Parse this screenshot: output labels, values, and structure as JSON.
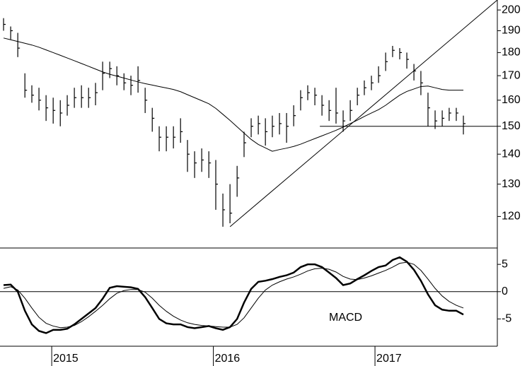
{
  "chart_data": [
    {
      "type": "ohlc",
      "log_scale": true,
      "color": "#000000",
      "x": [
        2014.702,
        2014.746,
        2014.79,
        2014.834,
        2014.877,
        2014.921,
        2014.965,
        2015.009,
        2015.053,
        2015.096,
        2015.14,
        2015.184,
        2015.228,
        2015.271,
        2015.315,
        2015.359,
        2015.403,
        2015.447,
        2015.49,
        2015.534,
        2015.578,
        2015.622,
        2015.665,
        2015.709,
        2015.753,
        2015.797,
        2015.84,
        2015.884,
        2015.928,
        2015.972,
        2016.015,
        2016.059,
        2016.103,
        2016.147,
        2016.19,
        2016.234,
        2016.278,
        2016.322,
        2016.365,
        2016.409,
        2016.453,
        2016.497,
        2016.54,
        2016.584,
        2016.628,
        2016.672,
        2016.716,
        2016.759,
        2016.803,
        2016.847,
        2016.891,
        2016.934,
        2016.978,
        2017.022,
        2017.066,
        2017.109,
        2017.153,
        2017.197,
        2017.241,
        2017.284,
        2017.328,
        2017.372,
        2017.416,
        2017.459,
        2017.503,
        2017.547
      ],
      "high": [
        196,
        192,
        189,
        171,
        166,
        165,
        162,
        161,
        160,
        162,
        165,
        166,
        165,
        167,
        176,
        176,
        174,
        171,
        170,
        174,
        165,
        157,
        150,
        150,
        150,
        153,
        145,
        141,
        142,
        141,
        138,
        127,
        130,
        136,
        148,
        153,
        154,
        153,
        154,
        155,
        155,
        158,
        164,
        166,
        165,
        162,
        160,
        165,
        156,
        160,
        165,
        168,
        170,
        174,
        180,
        183,
        182,
        180,
        175,
        172,
        163,
        156,
        156,
        157,
        157,
        154
      ],
      "low": [
        190,
        186,
        178,
        161,
        159,
        156,
        152,
        151,
        150,
        154,
        157,
        157,
        157,
        158,
        164,
        169,
        166,
        164,
        162,
        163,
        155,
        148,
        141,
        141,
        142,
        144,
        134,
        132,
        134,
        132,
        122,
        117,
        118,
        126,
        139,
        146,
        147,
        143,
        146,
        147,
        144,
        150,
        156,
        160,
        158,
        154,
        152,
        151,
        148,
        152,
        158,
        162,
        164,
        167,
        172,
        178,
        177,
        173,
        168,
        162,
        150,
        149,
        150,
        152,
        152,
        147
      ],
      "close": [
        193,
        190,
        182,
        164,
        162,
        160,
        157,
        156,
        155,
        158,
        161,
        161,
        161,
        163,
        171,
        173,
        170,
        167,
        166,
        168,
        160,
        153,
        146,
        146,
        146,
        148,
        140,
        137,
        138,
        137,
        130,
        122,
        121,
        132,
        144,
        150,
        151,
        148,
        150,
        151,
        150,
        154,
        161,
        163,
        162,
        158,
        156,
        155,
        152,
        156,
        162,
        165,
        167,
        170,
        176,
        181,
        180,
        177,
        172,
        167,
        157,
        152,
        153,
        155,
        155,
        151
      ],
      "moving_average": [
        186.6,
        185.8,
        185,
        184.2,
        183.4,
        182.4,
        181.2,
        180,
        178.8,
        177.6,
        176.4,
        175.2,
        174,
        172.8,
        171.6,
        170.6,
        169.8,
        169,
        168.2,
        167.4,
        166.7,
        166.1,
        165.5,
        164.9,
        164.3,
        163.4,
        162.2,
        161,
        159.8,
        158.6,
        156.8,
        154.5,
        152.2,
        149.8,
        147.5,
        145.2,
        143.4,
        142.2,
        141,
        141.6,
        142.1,
        142.7,
        143.5,
        144.5,
        145.5,
        146.5,
        147.5,
        148.5,
        149.7,
        151,
        152.3,
        153.7,
        155,
        156.3,
        158,
        160,
        162,
        163.5,
        164.5,
        165.5,
        165.7,
        165,
        164.3,
        164,
        164,
        164
      ],
      "trendlines": [
        {
          "x": [
            2016.103,
            2017.757
          ],
          "values": [
            117,
            205
          ]
        },
        {
          "x": [
            2016.659,
            2017.757
          ],
          "values": [
            150,
            150
          ]
        }
      ],
      "xlim": [
        2014.68,
        2017.757
      ],
      "ylim": [
        111,
        205
      ],
      "yticks": [
        120,
        130,
        140,
        150,
        160,
        170,
        180,
        190,
        200
      ]
    },
    {
      "type": "line",
      "annotation": "MACD",
      "color": "#000000",
      "x": [
        2014.702,
        2014.746,
        2014.79,
        2014.834,
        2014.877,
        2014.921,
        2014.965,
        2015.009,
        2015.053,
        2015.096,
        2015.14,
        2015.184,
        2015.228,
        2015.271,
        2015.315,
        2015.359,
        2015.403,
        2015.447,
        2015.49,
        2015.534,
        2015.578,
        2015.622,
        2015.665,
        2015.709,
        2015.753,
        2015.797,
        2015.84,
        2015.884,
        2015.928,
        2015.972,
        2016.015,
        2016.059,
        2016.103,
        2016.147,
        2016.19,
        2016.234,
        2016.278,
        2016.322,
        2016.365,
        2016.409,
        2016.453,
        2016.497,
        2016.54,
        2016.584,
        2016.628,
        2016.672,
        2016.716,
        2016.759,
        2016.803,
        2016.847,
        2016.891,
        2016.934,
        2016.978,
        2017.022,
        2017.066,
        2017.109,
        2017.153,
        2017.197,
        2017.241,
        2017.284,
        2017.328,
        2017.372,
        2017.416,
        2017.459,
        2017.503,
        2017.547
      ],
      "series": [
        {
          "color": "#000000",
          "values": [
            1.2,
            1.3,
            0,
            -3.5,
            -6,
            -7.2,
            -7.6,
            -7,
            -7,
            -6.8,
            -6,
            -5,
            -4,
            -3,
            -1.3,
            0.7,
            1,
            0.9,
            0.8,
            0.5,
            -1,
            -3,
            -5,
            -5.8,
            -6,
            -6,
            -6.5,
            -6.7,
            -6.5,
            -6.3,
            -6.7,
            -7,
            -6.5,
            -5,
            -2,
            0.5,
            1.8,
            2,
            2.3,
            2.7,
            3,
            3.5,
            4.5,
            5,
            5,
            4.5,
            3.5,
            2.5,
            1.2,
            1.5,
            2.3,
            3,
            3.8,
            4.5,
            4.8,
            5.8,
            6.3,
            5.5,
            4,
            2,
            -0.5,
            -2.5,
            -3.3,
            -3.5,
            -3.5,
            -4.2
          ]
        },
        {
          "color": "#000000",
          "values": [
            0.6,
            0.9,
            0.3,
            -1.2,
            -3,
            -4.7,
            -5.8,
            -6.3,
            -6.6,
            -6.5,
            -6.2,
            -5.5,
            -4.6,
            -3.6,
            -2.5,
            -1.3,
            -0.3,
            0.2,
            0.4,
            0.4,
            -0.1,
            -1.2,
            -2.5,
            -3.6,
            -4.5,
            -5.2,
            -5.7,
            -6,
            -6.2,
            -6.3,
            -6.4,
            -6.5,
            -6.5,
            -6,
            -4.8,
            -3,
            -1.2,
            0.3,
            1.2,
            1.8,
            2.3,
            2.7,
            3.2,
            3.8,
            4.2,
            4.3,
            4.1,
            3.6,
            2.8,
            2.3,
            2.2,
            2.5,
            2.9,
            3.4,
            3.9,
            4.5,
            5.2,
            5.4,
            5,
            3.9,
            2.3,
            0.6,
            -0.8,
            -1.8,
            -2.5,
            -3
          ]
        }
      ],
      "zero_line": 0,
      "xlim": [
        2014.68,
        2017.757
      ],
      "ylim": [
        -10,
        8
      ],
      "yticks": [
        -5,
        0,
        5
      ],
      "xticks": [
        2015,
        2016,
        2017
      ]
    }
  ]
}
